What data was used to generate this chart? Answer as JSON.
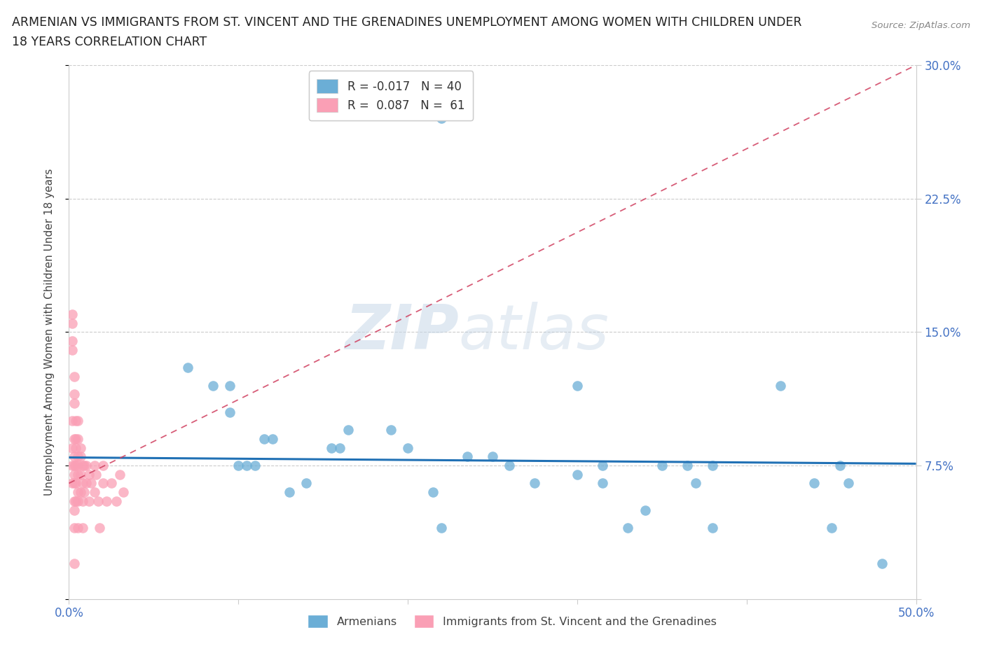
{
  "title_line1": "ARMENIAN VS IMMIGRANTS FROM ST. VINCENT AND THE GRENADINES UNEMPLOYMENT AMONG WOMEN WITH CHILDREN UNDER",
  "title_line2": "18 YEARS CORRELATION CHART",
  "source": "Source: ZipAtlas.com",
  "ylabel": "Unemployment Among Women with Children Under 18 years",
  "xlim": [
    0.0,
    0.5
  ],
  "ylim": [
    0.0,
    0.3
  ],
  "xticks": [
    0.0,
    0.1,
    0.2,
    0.3,
    0.4,
    0.5
  ],
  "xticklabels": [
    "0.0%",
    "",
    "",
    "",
    "",
    "50.0%"
  ],
  "yticks": [
    0.0,
    0.075,
    0.15,
    0.225,
    0.3
  ],
  "yticklabels": [
    "",
    "7.5%",
    "15.0%",
    "22.5%",
    "30.0%"
  ],
  "blue_R": -0.017,
  "blue_N": 40,
  "pink_R": 0.087,
  "pink_N": 61,
  "blue_color": "#6baed6",
  "pink_color": "#fa9fb5",
  "blue_line_color": "#2171b5",
  "pink_line_color": "#d04060",
  "blue_line_x0": 0.0,
  "blue_line_y0": 0.0795,
  "blue_line_x1": 0.5,
  "blue_line_y1": 0.076,
  "pink_line_x0": 0.0,
  "pink_line_y0": 0.065,
  "pink_line_x1": 0.5,
  "pink_line_y1": 0.3,
  "watermark_zip": "ZIP",
  "watermark_atlas": "atlas",
  "blue_scatter_x": [
    0.22,
    0.07,
    0.085,
    0.095,
    0.095,
    0.1,
    0.105,
    0.11,
    0.115,
    0.12,
    0.13,
    0.14,
    0.155,
    0.16,
    0.165,
    0.19,
    0.2,
    0.215,
    0.22,
    0.235,
    0.25,
    0.26,
    0.275,
    0.3,
    0.315,
    0.33,
    0.35,
    0.365,
    0.38,
    0.3,
    0.315,
    0.34,
    0.37,
    0.38,
    0.42,
    0.44,
    0.45,
    0.455,
    0.46,
    0.48
  ],
  "blue_scatter_y": [
    0.27,
    0.13,
    0.12,
    0.12,
    0.105,
    0.075,
    0.075,
    0.075,
    0.09,
    0.09,
    0.06,
    0.065,
    0.085,
    0.085,
    0.095,
    0.095,
    0.085,
    0.06,
    0.04,
    0.08,
    0.08,
    0.075,
    0.065,
    0.07,
    0.075,
    0.04,
    0.075,
    0.075,
    0.075,
    0.12,
    0.065,
    0.05,
    0.065,
    0.04,
    0.12,
    0.065,
    0.04,
    0.075,
    0.065,
    0.02
  ],
  "pink_scatter_x": [
    0.002,
    0.002,
    0.002,
    0.002,
    0.002,
    0.002,
    0.002,
    0.002,
    0.003,
    0.003,
    0.003,
    0.003,
    0.003,
    0.003,
    0.003,
    0.003,
    0.003,
    0.003,
    0.003,
    0.003,
    0.004,
    0.004,
    0.004,
    0.004,
    0.004,
    0.004,
    0.005,
    0.005,
    0.005,
    0.005,
    0.005,
    0.005,
    0.005,
    0.005,
    0.007,
    0.007,
    0.007,
    0.007,
    0.008,
    0.008,
    0.008,
    0.008,
    0.009,
    0.009,
    0.01,
    0.01,
    0.012,
    0.012,
    0.013,
    0.015,
    0.015,
    0.016,
    0.017,
    0.018,
    0.02,
    0.02,
    0.022,
    0.025,
    0.028,
    0.03,
    0.032
  ],
  "pink_scatter_y": [
    0.16,
    0.155,
    0.145,
    0.14,
    0.1,
    0.085,
    0.075,
    0.065,
    0.125,
    0.115,
    0.11,
    0.09,
    0.08,
    0.075,
    0.07,
    0.065,
    0.055,
    0.05,
    0.04,
    0.02,
    0.1,
    0.09,
    0.085,
    0.075,
    0.065,
    0.055,
    0.1,
    0.09,
    0.08,
    0.075,
    0.07,
    0.06,
    0.055,
    0.04,
    0.085,
    0.08,
    0.07,
    0.06,
    0.075,
    0.065,
    0.055,
    0.04,
    0.075,
    0.06,
    0.075,
    0.065,
    0.07,
    0.055,
    0.065,
    0.075,
    0.06,
    0.07,
    0.055,
    0.04,
    0.075,
    0.065,
    0.055,
    0.065,
    0.055,
    0.07,
    0.06
  ]
}
